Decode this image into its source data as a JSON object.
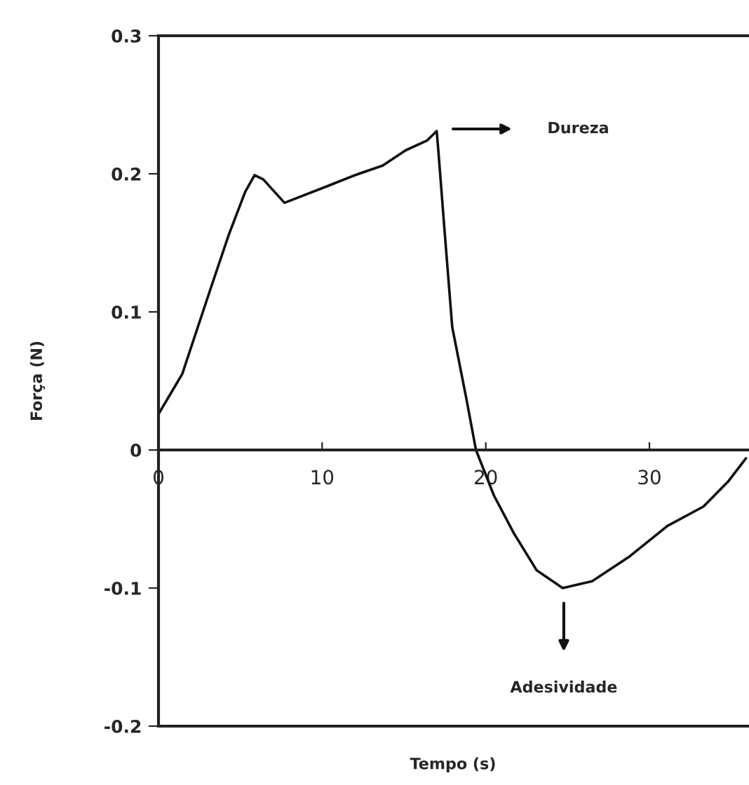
{
  "chart_data": {
    "type": "line",
    "xlabel": "Tempo (s)",
    "ylabel": "Força (N)",
    "x": [
      0,
      1.45,
      3.16,
      4.3,
      5.3,
      5.87,
      6.4,
      7.7,
      10.3,
      12.0,
      13.7,
      15.1,
      16.4,
      17.0,
      17.1,
      17.5,
      17.95,
      18.8,
      19.4,
      20.5,
      21.7,
      23.1,
      24.7,
      26.5,
      28.8,
      31.1,
      33.3,
      34.8,
      35.9
    ],
    "series": [
      {
        "color": "#111111",
        "values": [
          0.026,
          0.055,
          0.116,
          0.156,
          0.187,
          0.199,
          0.196,
          0.179,
          0.191,
          0.199,
          0.206,
          0.217,
          0.224,
          0.231,
          0.217,
          0.156,
          0.089,
          0.038,
          0.0,
          -0.033,
          -0.06,
          -0.087,
          -0.1,
          -0.095,
          -0.077,
          -0.055,
          -0.041,
          -0.023,
          -0.006
        ]
      }
    ],
    "xlim": [
      0,
      36
    ],
    "xticks": [
      0,
      10,
      20,
      30
    ],
    "ylim": [
      -0.2,
      0.3
    ],
    "yticks": [
      -0.2,
      -0.1,
      0,
      0.1,
      0.2,
      0.3
    ],
    "grid": false,
    "marker": "none",
    "line_style": "solid",
    "annotations": [
      "Dureza",
      "Adesividade"
    ]
  }
}
